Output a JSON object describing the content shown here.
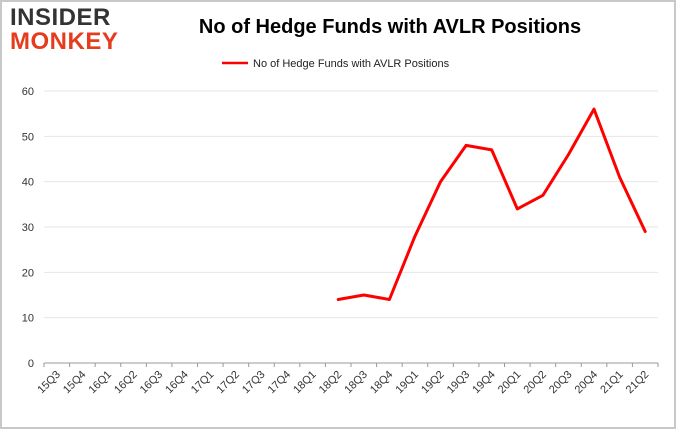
{
  "logo": {
    "line1": "INSIDER",
    "line2": "MONKEY"
  },
  "colors": {
    "line": "#ff0000",
    "grid": "#e6e6e6",
    "axis": "#999999",
    "logo_dark": "#333333",
    "logo_accent": "#e63c1e"
  },
  "chart_data": {
    "type": "line",
    "title": "No of Hedge Funds with AVLR Positions",
    "xlabel": "",
    "ylabel": "",
    "categories": [
      "15Q3",
      "15Q4",
      "16Q1",
      "16Q2",
      "16Q3",
      "16Q4",
      "17Q1",
      "17Q2",
      "17Q3",
      "17Q4",
      "18Q1",
      "18Q2",
      "18Q3",
      "18Q4",
      "19Q1",
      "19Q2",
      "19Q3",
      "19Q4",
      "20Q1",
      "20Q2",
      "20Q3",
      "20Q4",
      "21Q1",
      "21Q2"
    ],
    "series": [
      {
        "name": "No of Hedge Funds with AVLR Positions",
        "values": [
          null,
          null,
          null,
          null,
          null,
          null,
          null,
          null,
          null,
          null,
          null,
          14,
          15,
          14,
          28,
          40,
          48,
          47,
          34,
          37,
          46,
          56,
          41,
          29
        ]
      }
    ],
    "ylim": [
      0,
      60
    ],
    "yticks": [
      0,
      10,
      20,
      30,
      40,
      50,
      60
    ],
    "grid": true,
    "legend_position": "top-center"
  }
}
